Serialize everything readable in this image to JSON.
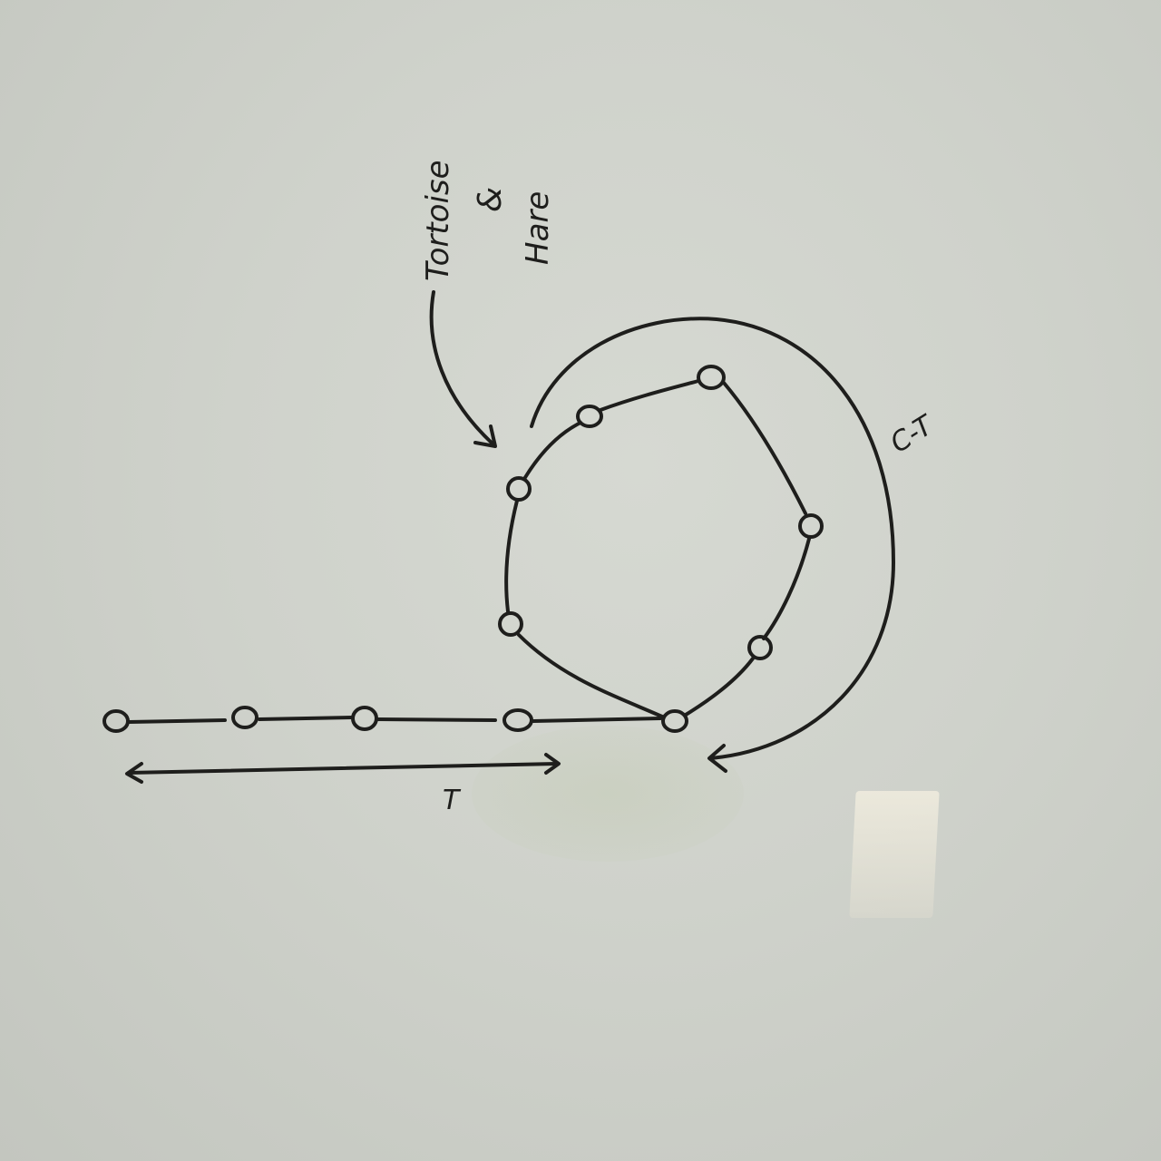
{
  "labels": {
    "pointer_top": "Tortoise",
    "pointer_mid": "&",
    "pointer_bottom": "Hare",
    "cycle_length": "C-T",
    "tail_length": "T"
  },
  "colors": {
    "ink": "#1e1e1c",
    "board": "#cfd2cb"
  }
}
